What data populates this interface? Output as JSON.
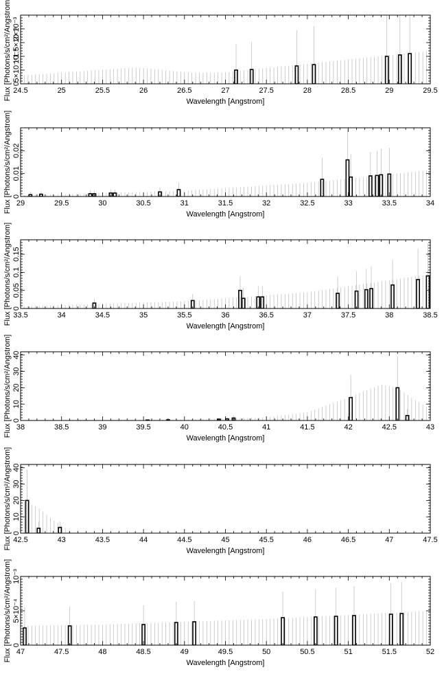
{
  "chart_data": [
    {
      "type": "bar",
      "xlabel": "Wavelength [Angstrom]",
      "ylabel": "Flux [Photons/s/cm²/Angstrom]",
      "xlim": [
        24.5,
        29.5
      ],
      "ylim": [
        0,
        0.0025
      ],
      "x_ticks": [
        "24.5",
        "25",
        "25.5",
        "26",
        "26.5",
        "27",
        "27.5",
        "28",
        "28.5",
        "29",
        "29.5"
      ],
      "y_ticks": [
        {
          "value": 0,
          "label": "0"
        },
        {
          "value": 0.0005,
          "label": "5×10⁻⁴"
        },
        {
          "value": 0.001,
          "label": "10⁻³"
        },
        {
          "value": 0.0015,
          "label": "1.5×10⁻³"
        },
        {
          "value": 0.002,
          "label": "2×10⁻³"
        }
      ],
      "error_band": {
        "x_range": [
          24.5,
          29.5
        ],
        "points": [
          [
            24.5,
            0.0003
          ],
          [
            25.9,
            0.0006
          ],
          [
            26.6,
            0.0004
          ],
          [
            27.0,
            0.00042
          ],
          [
            29.5,
            0.0012
          ]
        ]
      },
      "lines": [
        {
          "x": 27.13,
          "value": 0.0005,
          "err": 0.00095
        },
        {
          "x": 27.32,
          "value": 0.00052,
          "err": 0.001
        },
        {
          "x": 27.87,
          "value": 0.00065,
          "err": 0.0013
        },
        {
          "x": 28.08,
          "value": 0.0007,
          "err": 0.0014
        },
        {
          "x": 28.97,
          "value": 0.001,
          "err": 0.0021
        },
        {
          "x": 29.13,
          "value": 0.00105,
          "err": 0.0022
        },
        {
          "x": 29.25,
          "value": 0.0011,
          "err": 0.0022
        }
      ]
    },
    {
      "type": "bar",
      "xlabel": "Wavelength [Angstrom]",
      "ylabel": "Flux [Photons/s/cm²/Angstrom]",
      "xlim": [
        29,
        34
      ],
      "ylim": [
        0,
        0.03
      ],
      "x_ticks": [
        "29",
        "29.5",
        "30",
        "30.5",
        "31",
        "31.5",
        "32",
        "32.5",
        "33",
        "33.5",
        "34"
      ],
      "y_ticks": [
        {
          "value": 0,
          "label": "0"
        },
        {
          "value": 0.01,
          "label": "0.01"
        },
        {
          "value": 0.02,
          "label": "0.02"
        }
      ],
      "error_band": {
        "x_range": [
          29,
          34
        ],
        "points": [
          [
            29,
            0.0005
          ],
          [
            31,
            0.0025
          ],
          [
            32.5,
            0.006
          ],
          [
            34,
            0.0115
          ]
        ]
      },
      "lines": [
        {
          "x": 29.12,
          "value": 0.0008,
          "err": 0.0012
        },
        {
          "x": 29.25,
          "value": 0.001,
          "err": 0.0012
        },
        {
          "x": 29.85,
          "value": 0.0012,
          "err": 0.0015
        },
        {
          "x": 29.9,
          "value": 0.0012,
          "err": 0.0015
        },
        {
          "x": 30.1,
          "value": 0.0015,
          "err": 0.0015
        },
        {
          "x": 30.15,
          "value": 0.0015,
          "err": 0.0015
        },
        {
          "x": 30.7,
          "value": 0.002,
          "err": 0.002
        },
        {
          "x": 30.93,
          "value": 0.003,
          "err": 0.003
        },
        {
          "x": 32.68,
          "value": 0.0075,
          "err": 0.0095
        },
        {
          "x": 32.99,
          "value": 0.016,
          "err": 0.0135
        },
        {
          "x": 33.03,
          "value": 0.0085,
          "err": 0.01
        },
        {
          "x": 33.27,
          "value": 0.009,
          "err": 0.0105
        },
        {
          "x": 33.35,
          "value": 0.0092,
          "err": 0.0108
        },
        {
          "x": 33.4,
          "value": 0.0095,
          "err": 0.0112
        },
        {
          "x": 33.5,
          "value": 0.0098,
          "err": 0.0115
        }
      ]
    },
    {
      "type": "bar",
      "xlabel": "Wavelength [Angstrom]",
      "ylabel": "Flux [Photons/s/cm²/Angstrom]",
      "xlim": [
        33.5,
        38.5
      ],
      "ylim": [
        0,
        0.19
      ],
      "x_ticks": [
        "33.5",
        "34",
        "34.5",
        "35",
        "35.5",
        "36",
        "36.5",
        "37",
        "37.5",
        "38",
        "38.5"
      ],
      "y_ticks": [
        {
          "value": 0,
          "label": "0"
        },
        {
          "value": 0.05,
          "label": "0.05"
        },
        {
          "value": 0.1,
          "label": "0.1"
        },
        {
          "value": 0.15,
          "label": "0.15"
        }
      ],
      "error_band": {
        "x_range": [
          33.5,
          38.5
        ],
        "points": [
          [
            33.5,
            0.006
          ],
          [
            35.5,
            0.02
          ],
          [
            37,
            0.045
          ],
          [
            38.5,
            0.095
          ]
        ]
      },
      "lines": [
        {
          "x": 34.4,
          "value": 0.015,
          "err": 0.012
        },
        {
          "x": 35.6,
          "value": 0.022,
          "err": 0.018
        },
        {
          "x": 36.18,
          "value": 0.05,
          "err": 0.04
        },
        {
          "x": 36.22,
          "value": 0.028,
          "err": 0.03
        },
        {
          "x": 36.4,
          "value": 0.032,
          "err": 0.03
        },
        {
          "x": 36.45,
          "value": 0.032,
          "err": 0.03
        },
        {
          "x": 37.37,
          "value": 0.042,
          "err": 0.046
        },
        {
          "x": 37.6,
          "value": 0.048,
          "err": 0.055
        },
        {
          "x": 37.72,
          "value": 0.052,
          "err": 0.058
        },
        {
          "x": 37.78,
          "value": 0.055,
          "err": 0.062
        },
        {
          "x": 38.04,
          "value": 0.065,
          "err": 0.07
        },
        {
          "x": 38.35,
          "value": 0.08,
          "err": 0.085
        },
        {
          "x": 38.47,
          "value": 0.09,
          "err": 0.09
        }
      ]
    },
    {
      "type": "bar",
      "xlabel": "Wavelength [Angstrom]",
      "ylabel": "Flux [Photons/s/cm²/Angstrom]",
      "xlim": [
        38,
        43
      ],
      "ylim": [
        0,
        42
      ],
      "x_ticks": [
        "38",
        "38.5",
        "39",
        "39.5",
        "40",
        "40.5",
        "41",
        "41.5",
        "42",
        "42.5",
        "43"
      ],
      "y_ticks": [
        {
          "value": 0,
          "label": "0"
        },
        {
          "value": 10,
          "label": "10"
        },
        {
          "value": 20,
          "label": "20"
        },
        {
          "value": 30,
          "label": "30"
        },
        {
          "value": 40,
          "label": "40"
        }
      ],
      "error_band": {
        "x_range": [
          38,
          43
        ],
        "points": [
          [
            38,
            0.3
          ],
          [
            40,
            0.6
          ],
          [
            41,
            2
          ],
          [
            41.5,
            5
          ],
          [
            42,
            14
          ],
          [
            42.4,
            22
          ],
          [
            42.6,
            20
          ],
          [
            42.8,
            13
          ],
          [
            43,
            7
          ]
        ]
      },
      "lines": [
        {
          "x": 39.55,
          "value": 0.3,
          "err": 0.4
        },
        {
          "x": 39.8,
          "value": 0.4,
          "err": 0.5
        },
        {
          "x": 40.42,
          "value": 0.8,
          "err": 1
        },
        {
          "x": 40.52,
          "value": 1,
          "err": 1.2
        },
        {
          "x": 40.6,
          "value": 1.5,
          "err": 1.5
        },
        {
          "x": 42.03,
          "value": 14,
          "err": 14
        },
        {
          "x": 42.6,
          "value": 20,
          "err": 19
        },
        {
          "x": 42.72,
          "value": 3,
          "err": 4
        }
      ]
    },
    {
      "type": "bar",
      "xlabel": "Wavelength [Angstrom]",
      "ylabel": "Flux [Photons/s/cm²/Angstrom]",
      "xlim": [
        42.5,
        47.5
      ],
      "ylim": [
        0,
        42
      ],
      "x_ticks": [
        "42.5",
        "43",
        "43.5",
        "44",
        "44.5",
        "45",
        "45.5",
        "46",
        "46.5",
        "47",
        "47.5"
      ],
      "y_ticks": [
        {
          "value": 0,
          "label": "0"
        },
        {
          "value": 10,
          "label": "10"
        },
        {
          "value": 20,
          "label": "20"
        },
        {
          "value": 30,
          "label": "30"
        },
        {
          "value": 40,
          "label": "40"
        }
      ],
      "error_band": {
        "x_range": [
          42.5,
          43.1
        ],
        "points": [
          [
            42.5,
            20
          ],
          [
            42.7,
            16
          ],
          [
            42.9,
            8
          ],
          [
            43.05,
            3
          ],
          [
            43.1,
            1
          ]
        ]
      },
      "lines": [
        {
          "x": 42.58,
          "value": 20,
          "err": 19
        },
        {
          "x": 42.72,
          "value": 3,
          "err": 4
        },
        {
          "x": 42.98,
          "value": 3.5,
          "err": 3.5
        }
      ]
    },
    {
      "type": "bar",
      "xlabel": "Wavelength [Angstrom]",
      "ylabel": "Flux [Photons/s/cm²/Angstrom]",
      "xlim": [
        47,
        52
      ],
      "ylim": [
        0,
        0.001
      ],
      "x_ticks": [
        "47",
        "47.5",
        "48",
        "48.5",
        "49",
        "49.5",
        "50",
        "50.5",
        "51",
        "51.5",
        "52"
      ],
      "y_ticks": [
        {
          "value": 0,
          "label": "0"
        },
        {
          "value": 0.0005,
          "label": "5×10⁻⁴"
        },
        {
          "value": 0.001,
          "label": "10⁻³"
        }
      ],
      "error_band": {
        "x_range": [
          47,
          52
        ],
        "points": [
          [
            47,
            0.00028
          ],
          [
            48,
            0.0003
          ],
          [
            50,
            0.00038
          ],
          [
            52,
            0.0005
          ]
        ]
      },
      "lines": [
        {
          "x": 47.05,
          "value": 0.00025,
          "err": 0.0003
        },
        {
          "x": 47.6,
          "value": 0.00028,
          "err": 0.00028
        },
        {
          "x": 48.5,
          "value": 0.0003,
          "err": 0.00028
        },
        {
          "x": 48.9,
          "value": 0.00033,
          "err": 0.0003
        },
        {
          "x": 49.12,
          "value": 0.00034,
          "err": 0.0003
        },
        {
          "x": 50.2,
          "value": 0.0004,
          "err": 0.00038
        },
        {
          "x": 50.6,
          "value": 0.00041,
          "err": 0.0004
        },
        {
          "x": 50.85,
          "value": 0.00042,
          "err": 0.00042
        },
        {
          "x": 51.07,
          "value": 0.00043,
          "err": 0.00043
        },
        {
          "x": 51.52,
          "value": 0.00045,
          "err": 0.00045
        },
        {
          "x": 51.65,
          "value": 0.00046,
          "err": 0.00046
        }
      ]
    }
  ]
}
